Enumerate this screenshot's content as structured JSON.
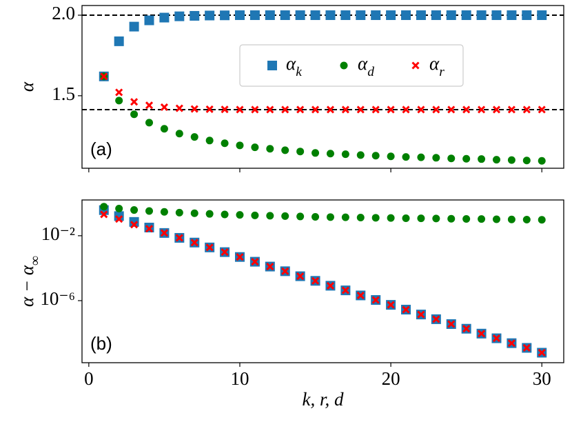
{
  "chart_data": [
    {
      "type": "scatter",
      "panel_label": "(a)",
      "y_label": "α",
      "x": [
        1,
        2,
        3,
        4,
        5,
        6,
        7,
        8,
        9,
        10,
        11,
        12,
        13,
        14,
        15,
        16,
        17,
        18,
        19,
        20,
        21,
        22,
        23,
        24,
        25,
        26,
        27,
        28,
        29,
        30
      ],
      "xlim": [
        -0.45,
        31.45
      ],
      "ylim": [
        1.05,
        2.06
      ],
      "yticks": [
        {
          "value": 1.5,
          "label": "1.5"
        },
        {
          "value": 2,
          "label": "2.0"
        }
      ],
      "hlines": [
        2,
        1.414
      ],
      "hline_color": "#000000",
      "legend": "upper right",
      "series": [
        {
          "name": "α_k",
          "color": "#1f77b4",
          "marker": "s",
          "values": [
            1.62,
            1.838,
            1.929,
            1.968,
            1.985,
            1.993,
            1.996,
            1.998,
            1.999,
            2,
            2,
            2,
            2,
            2,
            2,
            2,
            2,
            2,
            2,
            2,
            2,
            2,
            2,
            2,
            2,
            2,
            2,
            2,
            2,
            2
          ]
        },
        {
          "name": "α_d",
          "color": "#008000",
          "marker": "o",
          "values": [
            1.62,
            1.47,
            1.385,
            1.333,
            1.295,
            1.265,
            1.244,
            1.222,
            1.205,
            1.192,
            1.18,
            1.171,
            1.162,
            1.154,
            1.145,
            1.141,
            1.137,
            1.132,
            1.128,
            1.124,
            1.12,
            1.118,
            1.115,
            1.111,
            1.109,
            1.107,
            1.103,
            1.101,
            1.098,
            1.096
          ]
        },
        {
          "name": "α_r",
          "color": "#ff0000",
          "marker": "x",
          "values": [
            1.62,
            1.521,
            1.462,
            1.441,
            1.429,
            1.422,
            1.418,
            1.416,
            1.415,
            1.414,
            1.414,
            1.414,
            1.414,
            1.414,
            1.414,
            1.414,
            1.414,
            1.414,
            1.414,
            1.414,
            1.414,
            1.414,
            1.414,
            1.414,
            1.414,
            1.414,
            1.414,
            1.414,
            1.414,
            1.414
          ]
        }
      ]
    },
    {
      "type": "scatter",
      "panel_label": "(b)",
      "y_label": "α − α_∞",
      "x_label": "k,  r,  d",
      "log_y": true,
      "x": [
        1,
        2,
        3,
        4,
        5,
        6,
        7,
        8,
        9,
        10,
        11,
        12,
        13,
        14,
        15,
        16,
        17,
        18,
        19,
        20,
        21,
        22,
        23,
        24,
        25,
        26,
        27,
        28,
        29,
        30
      ],
      "xlim": [
        -0.45,
        31.45
      ],
      "ylim": [
        1.5e-10,
        1.6
      ],
      "xticks": [
        0,
        10,
        20,
        30
      ],
      "yticks": [
        {
          "value": 0.01,
          "label": "10⁻²"
        },
        {
          "value": 1e-06,
          "label": "10⁻⁶"
        }
      ],
      "series": [
        {
          "color": "#1f77b4",
          "marker": "s",
          "values": [
            0.38,
            0.162,
            0.071,
            0.032,
            0.0148,
            0.0074,
            0.0038,
            0.0019,
            0.00098,
            0.00049,
            0.00025,
            0.000126,
            6.5e-05,
            3.2e-05,
            1.66e-05,
            8.3e-06,
            4.3e-06,
            2.1e-06,
            1.1e-06,
            5.5e-07,
            2.8e-07,
            1.4e-07,
            7.2e-08,
            3.6e-08,
            1.86e-08,
            9.3e-09,
            4.8e-09,
            2.4e-09,
            1.23e-09,
            6.2e-10
          ]
        },
        {
          "color": "#008000",
          "marker": "o",
          "values": [
            0.62,
            0.47,
            0.385,
            0.333,
            0.295,
            0.265,
            0.244,
            0.222,
            0.205,
            0.192,
            0.18,
            0.171,
            0.162,
            0.154,
            0.145,
            0.141,
            0.137,
            0.132,
            0.128,
            0.124,
            0.12,
            0.118,
            0.115,
            0.111,
            0.109,
            0.107,
            0.103,
            0.101,
            0.098,
            0.096
          ]
        },
        {
          "color": "#ff0000",
          "marker": "x",
          "values": [
            0.206,
            0.107,
            0.048,
            0.027,
            0.0148,
            0.0074,
            0.0038,
            0.0019,
            0.00098,
            0.00049,
            0.00025,
            0.000126,
            6.5e-05,
            3.2e-05,
            1.66e-05,
            8.3e-06,
            4.3e-06,
            2.1e-06,
            1.1e-06,
            5.5e-07,
            2.8e-07,
            1.4e-07,
            7.2e-08,
            3.6e-08,
            1.86e-08,
            9.3e-09,
            4.8e-09,
            2.4e-09,
            1.23e-09,
            6.2e-10
          ]
        }
      ]
    }
  ]
}
